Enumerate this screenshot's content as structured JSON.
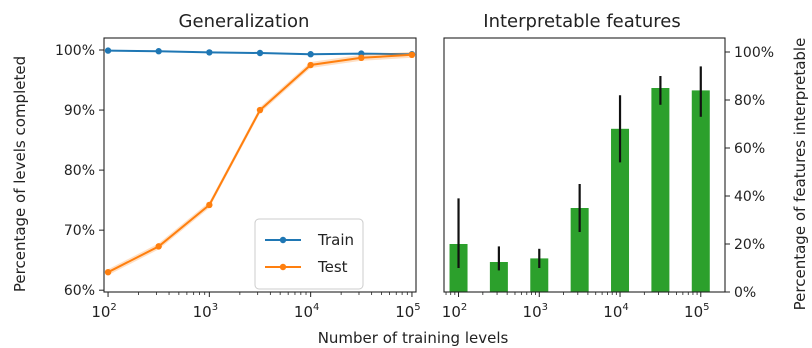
{
  "chart_data": [
    {
      "type": "line",
      "title": "Generalization",
      "ylabel": "Percentage of levels completed",
      "xscale": "log",
      "x": [
        100,
        316,
        1000,
        3162,
        10000,
        31623,
        100000
      ],
      "xlim": [
        100,
        100000
      ],
      "ylim": [
        60,
        100
      ],
      "yticks": [
        "60%",
        "70%",
        "80%",
        "90%",
        "100%"
      ],
      "ytick_values": [
        60,
        70,
        80,
        90,
        100
      ],
      "xticks": [
        {
          "value": 100,
          "base": "10",
          "exp": "2"
        },
        {
          "value": 1000,
          "base": "10",
          "exp": "3"
        },
        {
          "value": 10000,
          "base": "10",
          "exp": "4"
        },
        {
          "value": 100000,
          "base": "10",
          "exp": "5"
        }
      ],
      "series": [
        {
          "name": "Train",
          "color": "#1f77b4",
          "values": [
            99.9,
            99.8,
            99.6,
            99.5,
            99.3,
            99.4,
            99.3
          ]
        },
        {
          "name": "Test",
          "color": "#ff7f0e",
          "values": [
            63.0,
            67.3,
            74.2,
            90.0,
            97.5,
            98.7,
            99.2
          ]
        }
      ],
      "legend": "lower-right",
      "grid": false
    },
    {
      "type": "bar",
      "title": "Interpretable features",
      "ylabel": "Percentage of features interpretable",
      "xscale": "log",
      "x": [
        100,
        316,
        1000,
        3162,
        10000,
        31623,
        100000
      ],
      "ylim": [
        0,
        100
      ],
      "yticks": [
        "0%",
        "20%",
        "40%",
        "60%",
        "80%",
        "100%"
      ],
      "ytick_values": [
        0,
        20,
        40,
        60,
        80,
        100
      ],
      "xticks": [
        {
          "value": 100,
          "base": "10",
          "exp": "2"
        },
        {
          "value": 1000,
          "base": "10",
          "exp": "3"
        },
        {
          "value": 10000,
          "base": "10",
          "exp": "4"
        },
        {
          "value": 100000,
          "base": "10",
          "exp": "5"
        }
      ],
      "values": [
        20,
        12.5,
        14,
        35,
        68,
        85,
        84
      ],
      "err_low": [
        10,
        9,
        10,
        25,
        54,
        78,
        73
      ],
      "err_high": [
        39,
        19,
        18,
        45,
        82,
        90,
        94
      ],
      "color": "#2ca02c",
      "yaxis_side": "right",
      "grid": false
    }
  ],
  "shared_xlabel": "Number of training levels"
}
